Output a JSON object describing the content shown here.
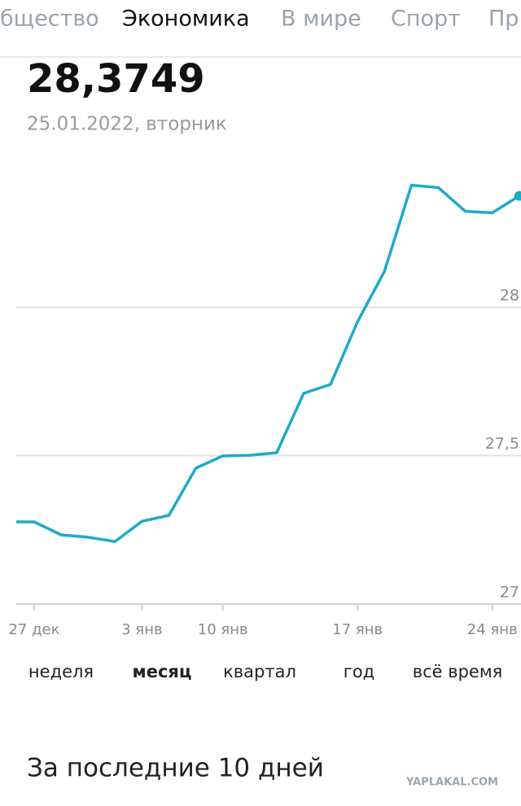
{
  "tabs": [
    "бщество",
    "Экономика",
    "В мире",
    "Спорт",
    "Пр"
  ],
  "header": {
    "value": "28,3749",
    "date": "25.01.2022, вторник"
  },
  "chart_data": {
    "type": "line",
    "categories": [
      null,
      "27 дек",
      null,
      null,
      null,
      "3 янв",
      null,
      null,
      "10 янв",
      null,
      null,
      null,
      null,
      "17 янв",
      null,
      null,
      null,
      null,
      "24 янв",
      null
    ],
    "values": [
      27.277,
      27.277,
      27.233,
      27.225,
      27.211,
      27.279,
      27.299,
      27.458,
      27.499,
      27.501,
      27.51,
      27.71,
      27.74,
      27.951,
      28.121,
      28.411,
      28.403,
      28.323,
      28.318,
      28.3749
    ],
    "color": "#1eaac8",
    "ylim": [
      27,
      28.5
    ],
    "yticks": [
      27,
      {
        "value": 27.5,
        "label": "27,5"
      },
      28
    ],
    "grid": true
  },
  "periods": [
    "неделя",
    "месяц",
    "квартал",
    "год",
    "всё время"
  ],
  "section_title": "За последние 10 дней",
  "watermark": "YAPLAKAL.COM"
}
